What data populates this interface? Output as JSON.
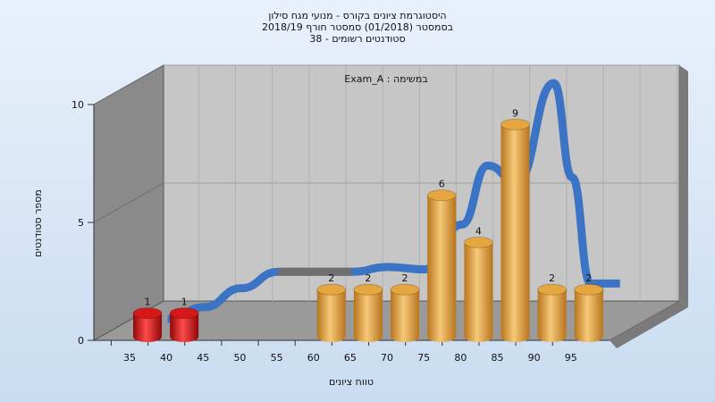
{
  "chart_data": {
    "type": "bar",
    "title_lines": [
      "היסטוגרמת ציונים בקורס - מנועי מגח סילון",
      "בסמסטר  (01/2018)  סמסטר חורף 2018/19",
      "סטודנטים רשומים - 38"
    ],
    "annotation": "Exam_A : במשימה",
    "xlabel": "טווח ציונים",
    "ylabel": "מספר סטודנטים",
    "categories": [
      "35",
      "40",
      "45",
      "50",
      "55",
      "60",
      "65",
      "70",
      "75",
      "80",
      "85",
      "90",
      "95"
    ],
    "values": [
      1,
      1,
      0,
      0,
      0,
      2,
      2,
      2,
      6,
      4,
      9,
      2,
      2
    ],
    "bar_labels": [
      "1",
      "1",
      "",
      "",
      "",
      "2",
      "2",
      "2",
      "6",
      "4",
      "9",
      "2",
      "2"
    ],
    "bar_colors": [
      "red",
      "red",
      "",
      "",
      "",
      "gold",
      "gold",
      "gold",
      "gold",
      "gold",
      "gold",
      "gold",
      "gold"
    ],
    "yticks": [
      "0",
      "5",
      "10"
    ],
    "ylim": [
      0,
      10
    ],
    "grid": true,
    "trend_curve": [
      {
        "x": 37.5,
        "y": 0
      },
      {
        "x": 42.5,
        "y": 0.5
      },
      {
        "x": 47.5,
        "y": 1.3
      },
      {
        "x": 52.5,
        "y": 2.0
      },
      {
        "x": 57.5,
        "y": 2.0
      },
      {
        "x": 62.5,
        "y": 2.0
      },
      {
        "x": 67.5,
        "y": 2.2
      },
      {
        "x": 72.5,
        "y": 2.1
      },
      {
        "x": 77.5,
        "y": 4.0
      },
      {
        "x": 81.0,
        "y": 6.5
      },
      {
        "x": 85.0,
        "y": 5.8
      },
      {
        "x": 90.0,
        "y": 10.0
      },
      {
        "x": 92.5,
        "y": 6.0
      },
      {
        "x": 95.0,
        "y": 1.5
      },
      {
        "x": 99.0,
        "y": 1.5
      }
    ],
    "colors": {
      "background_top": "#e9f1fb",
      "background_bottom": "#c9dcf1",
      "back_wall": "#c6c6c6",
      "side_wall": "#8a8a8a",
      "floor": "#9a9a9a",
      "bar_gold": "#e5a63f",
      "bar_red": "#d61818",
      "trend_blue": "#3b74c4",
      "trend_gray": "#6f6f6f"
    }
  }
}
